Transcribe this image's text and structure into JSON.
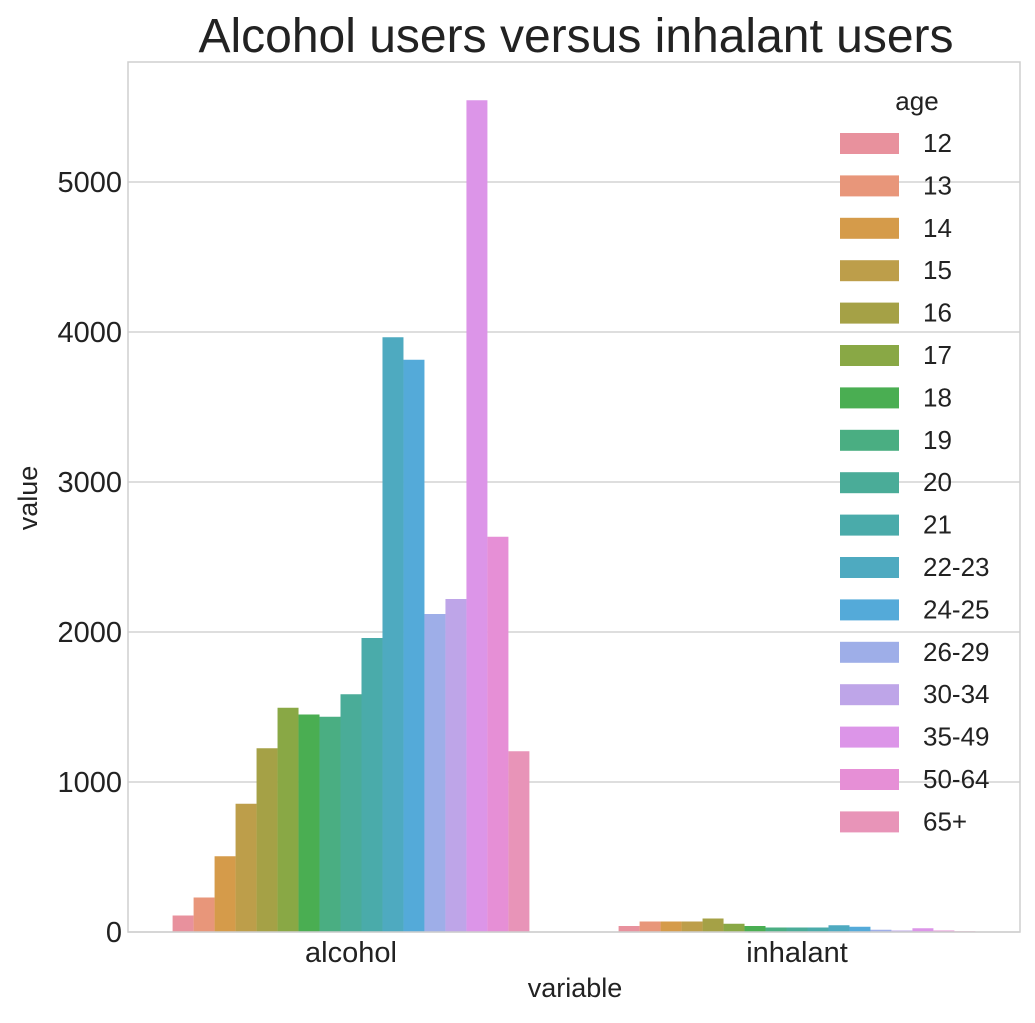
{
  "chart_data": {
    "type": "bar",
    "title": "Alcohol users versus inhalant users",
    "xlabel": "variable",
    "ylabel": "value",
    "categories": [
      "alcohol",
      "inhalant"
    ],
    "ylim": [
      0,
      5800
    ],
    "yticks": [
      0,
      1000,
      2000,
      3000,
      4000,
      5000
    ],
    "grid": true,
    "legend": {
      "title": "age",
      "placement": "top-right"
    },
    "series": [
      {
        "name": "12",
        "color": "#e8919d",
        "values": [
          110,
          40
        ]
      },
      {
        "name": "13",
        "color": "#e8967a",
        "values": [
          230,
          70
        ]
      },
      {
        "name": "14",
        "color": "#d59b4a",
        "values": [
          505,
          70
        ]
      },
      {
        "name": "15",
        "color": "#bd9e4a",
        "values": [
          855,
          70
        ]
      },
      {
        "name": "16",
        "color": "#a5a146",
        "values": [
          1225,
          90
        ]
      },
      {
        "name": "17",
        "color": "#89a845",
        "values": [
          1495,
          55
        ]
      },
      {
        "name": "18",
        "color": "#4aae52",
        "values": [
          1450,
          40
        ]
      },
      {
        "name": "19",
        "color": "#4aae82",
        "values": [
          1435,
          30
        ]
      },
      {
        "name": "20",
        "color": "#4aac98",
        "values": [
          1585,
          30
        ]
      },
      {
        "name": "21",
        "color": "#4aabaa",
        "values": [
          1960,
          30
        ]
      },
      {
        "name": "22-23",
        "color": "#4eaac0",
        "values": [
          3965,
          45
        ]
      },
      {
        "name": "24-25",
        "color": "#54aad9",
        "values": [
          3815,
          35
        ]
      },
      {
        "name": "26-29",
        "color": "#9eaee8",
        "values": [
          2120,
          15
        ]
      },
      {
        "name": "30-34",
        "color": "#bea5e8",
        "values": [
          2220,
          10
        ]
      },
      {
        "name": "35-49",
        "color": "#dc95e8",
        "values": [
          5545,
          25
        ]
      },
      {
        "name": "50-64",
        "color": "#e68fd6",
        "values": [
          2635,
          10
        ]
      },
      {
        "name": "65+",
        "color": "#e894b8",
        "values": [
          1205,
          5
        ]
      }
    ]
  }
}
